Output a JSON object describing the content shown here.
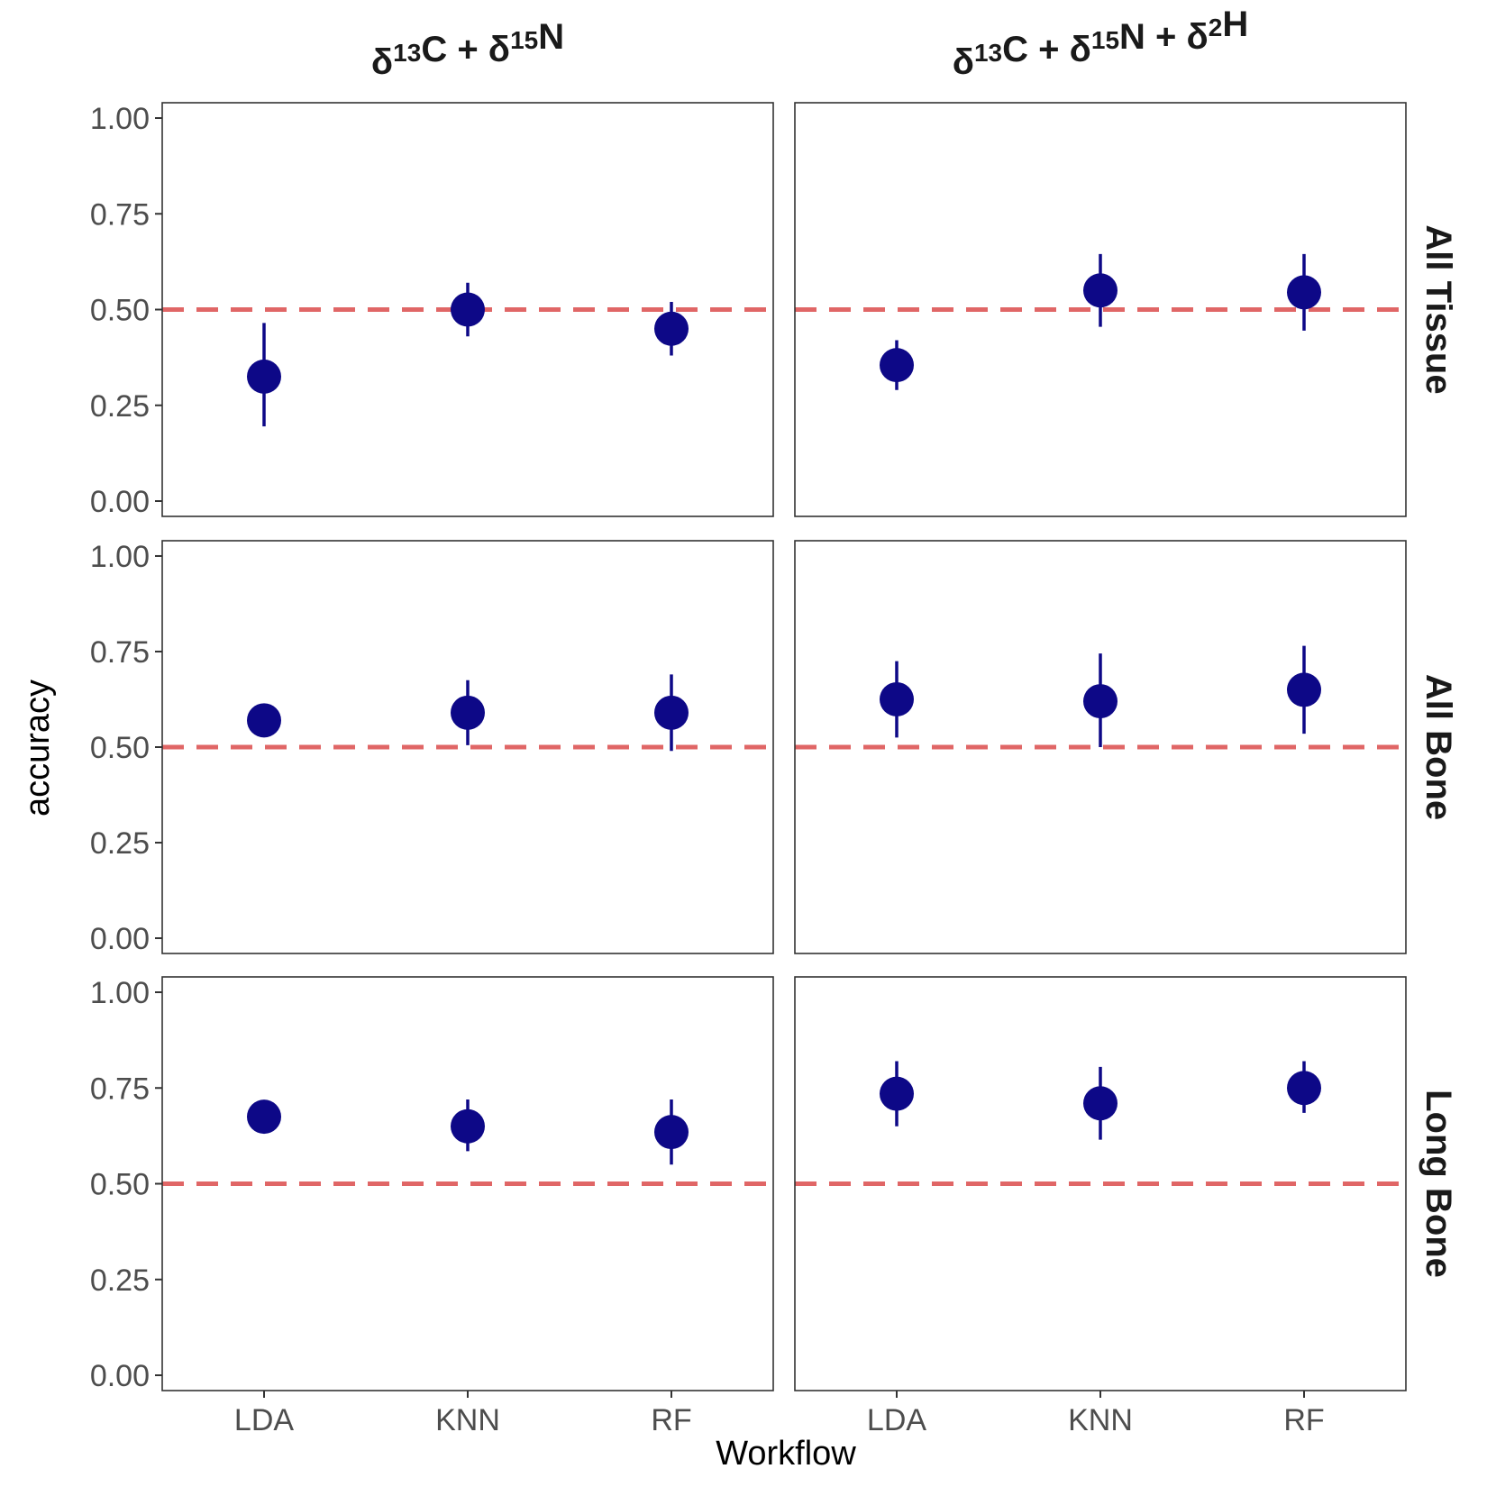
{
  "chart_data": {
    "type": "scatter",
    "chart_kind": "faceted point-range (point with error bars)",
    "xlabel": "Workflow",
    "ylabel": "accuracy",
    "categories": [
      "LDA",
      "KNN",
      "RF"
    ],
    "ylim": [
      -0.04,
      1.04
    ],
    "yticks": [
      "0.00",
      "0.25",
      "0.50",
      "0.75",
      "1.00"
    ],
    "ytick_values": [
      0,
      0.25,
      0.5,
      0.75,
      1.0
    ],
    "reference_line": {
      "y": 0.5,
      "style": "dashed",
      "color": "#E06666"
    },
    "point_color": "#0D0887",
    "grid": false,
    "columns": [
      {
        "label_parts": [
          [
            "δ",
            false
          ],
          [
            "13",
            true
          ],
          [
            "C + ",
            false
          ],
          [
            "δ",
            false
          ],
          [
            "15",
            true
          ],
          [
            "N",
            false
          ]
        ]
      },
      {
        "label_parts": [
          [
            "δ",
            false
          ],
          [
            "13",
            true
          ],
          [
            "C + ",
            false
          ],
          [
            "δ",
            false
          ],
          [
            "15",
            true
          ],
          [
            "N + ",
            false
          ],
          [
            "δ",
            false
          ],
          [
            "2",
            true
          ],
          [
            "H",
            false
          ]
        ]
      }
    ],
    "rows": [
      "All Tissue",
      "All Bone",
      "Long Bone"
    ],
    "panels": [
      {
        "row": 0,
        "col": 0,
        "points": [
          {
            "x": "LDA",
            "y": 0.325,
            "ymin": 0.195,
            "ymax": 0.465
          },
          {
            "x": "KNN",
            "y": 0.5,
            "ymin": 0.43,
            "ymax": 0.57
          },
          {
            "x": "RF",
            "y": 0.45,
            "ymin": 0.38,
            "ymax": 0.52
          }
        ]
      },
      {
        "row": 0,
        "col": 1,
        "points": [
          {
            "x": "LDA",
            "y": 0.355,
            "ymin": 0.29,
            "ymax": 0.42
          },
          {
            "x": "KNN",
            "y": 0.55,
            "ymin": 0.455,
            "ymax": 0.645
          },
          {
            "x": "RF",
            "y": 0.545,
            "ymin": 0.445,
            "ymax": 0.645
          }
        ]
      },
      {
        "row": 1,
        "col": 0,
        "points": [
          {
            "x": "LDA",
            "y": 0.57,
            "ymin": 0.57,
            "ymax": 0.57
          },
          {
            "x": "KNN",
            "y": 0.59,
            "ymin": 0.505,
            "ymax": 0.675
          },
          {
            "x": "RF",
            "y": 0.59,
            "ymin": 0.49,
            "ymax": 0.69
          }
        ]
      },
      {
        "row": 1,
        "col": 1,
        "points": [
          {
            "x": "LDA",
            "y": 0.625,
            "ymin": 0.525,
            "ymax": 0.725
          },
          {
            "x": "KNN",
            "y": 0.62,
            "ymin": 0.5,
            "ymax": 0.745
          },
          {
            "x": "RF",
            "y": 0.65,
            "ymin": 0.535,
            "ymax": 0.765
          }
        ]
      },
      {
        "row": 2,
        "col": 0,
        "points": [
          {
            "x": "LDA",
            "y": 0.675,
            "ymin": 0.675,
            "ymax": 0.675
          },
          {
            "x": "KNN",
            "y": 0.65,
            "ymin": 0.585,
            "ymax": 0.72
          },
          {
            "x": "RF",
            "y": 0.635,
            "ymin": 0.55,
            "ymax": 0.72
          }
        ]
      },
      {
        "row": 2,
        "col": 1,
        "points": [
          {
            "x": "LDA",
            "y": 0.735,
            "ymin": 0.65,
            "ymax": 0.82
          },
          {
            "x": "KNN",
            "y": 0.71,
            "ymin": 0.615,
            "ymax": 0.805
          },
          {
            "x": "RF",
            "y": 0.75,
            "ymin": 0.685,
            "ymax": 0.82
          }
        ]
      }
    ]
  }
}
